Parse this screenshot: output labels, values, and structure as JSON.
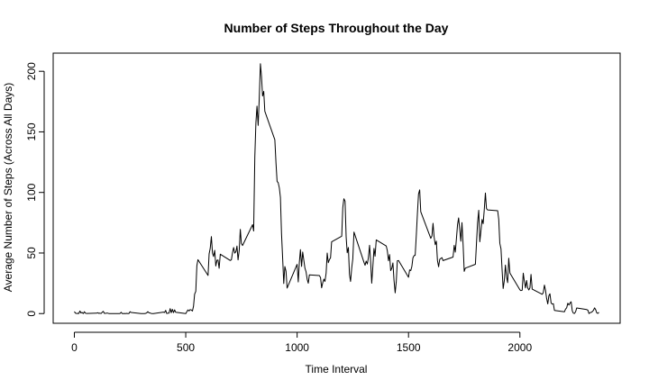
{
  "chart_data": {
    "type": "line",
    "title": "Number of Steps Throughout the Day",
    "xlabel": "Time Interval",
    "ylabel": "Average Number of Steps (Across All Days)",
    "xlim": [
      -95,
      2450
    ],
    "ylim": [
      -8,
      215
    ],
    "x_ticks": [
      0,
      500,
      1000,
      1500,
      2000
    ],
    "y_ticks": [
      0,
      50,
      100,
      150,
      200
    ],
    "grid": false,
    "series": [
      {
        "values": [
          [
            0,
            1.7
          ],
          [
            5,
            0.3
          ],
          [
            10,
            0.1
          ],
          [
            15,
            0.2
          ],
          [
            20,
            0.1
          ],
          [
            25,
            2.1
          ],
          [
            30,
            0.5
          ],
          [
            35,
            0.9
          ],
          [
            40,
            0
          ],
          [
            45,
            1.5
          ],
          [
            50,
            0.3
          ],
          [
            55,
            0.1
          ],
          [
            100,
            0.3
          ],
          [
            105,
            0.7
          ],
          [
            110,
            0.2
          ],
          [
            115,
            0.3
          ],
          [
            120,
            0
          ],
          [
            125,
            1.1
          ],
          [
            130,
            1.8
          ],
          [
            135,
            0.2
          ],
          [
            140,
            0.2
          ],
          [
            145,
            0.4
          ],
          [
            150,
            0.3
          ],
          [
            155,
            0
          ],
          [
            200,
            0
          ],
          [
            205,
            0
          ],
          [
            210,
            1.1
          ],
          [
            215,
            0
          ],
          [
            220,
            0
          ],
          [
            225,
            0.1
          ],
          [
            230,
            0
          ],
          [
            235,
            0.2
          ],
          [
            240,
            0
          ],
          [
            245,
            0
          ],
          [
            250,
            1.5
          ],
          [
            255,
            0.9
          ],
          [
            300,
            0
          ],
          [
            305,
            0
          ],
          [
            310,
            0
          ],
          [
            315,
            0
          ],
          [
            320,
            0.2
          ],
          [
            325,
            0.6
          ],
          [
            330,
            1.6
          ],
          [
            335,
            0.6
          ],
          [
            340,
            0.5
          ],
          [
            345,
            0.1
          ],
          [
            350,
            0
          ],
          [
            355,
            0
          ],
          [
            400,
            1.2
          ],
          [
            405,
            0.9
          ],
          [
            410,
            2.6
          ],
          [
            415,
            0
          ],
          [
            420,
            0.3
          ],
          [
            425,
            0.4
          ],
          [
            430,
            4.1
          ],
          [
            435,
            0.7
          ],
          [
            440,
            3.5
          ],
          [
            445,
            0.8
          ],
          [
            450,
            3.1
          ],
          [
            455,
            1.1
          ],
          [
            500,
            0
          ],
          [
            505,
            1.6
          ],
          [
            510,
            3.0
          ],
          [
            515,
            2.2
          ],
          [
            520,
            3.3
          ],
          [
            525,
            3.0
          ],
          [
            530,
            2.1
          ],
          [
            535,
            6.1
          ],
          [
            540,
            16.0
          ],
          [
            545,
            18.3
          ],
          [
            550,
            39.5
          ],
          [
            555,
            44.5
          ],
          [
            600,
            31.5
          ],
          [
            605,
            49.3
          ],
          [
            610,
            53.8
          ],
          [
            615,
            63.5
          ],
          [
            620,
            50.0
          ],
          [
            625,
            47.1
          ],
          [
            630,
            52.2
          ],
          [
            635,
            39.3
          ],
          [
            640,
            44.0
          ],
          [
            645,
            44.2
          ],
          [
            650,
            37.4
          ],
          [
            655,
            49.0
          ],
          [
            700,
            43.8
          ],
          [
            705,
            44.4
          ],
          [
            710,
            50.5
          ],
          [
            715,
            54.5
          ],
          [
            720,
            49.9
          ],
          [
            725,
            51.0
          ],
          [
            730,
            55.7
          ],
          [
            735,
            44.3
          ],
          [
            740,
            52.3
          ],
          [
            745,
            69.5
          ],
          [
            750,
            57.8
          ],
          [
            755,
            56.2
          ],
          [
            800,
            73.4
          ],
          [
            805,
            68.2
          ],
          [
            810,
            129.4
          ],
          [
            815,
            157.5
          ],
          [
            820,
            171.2
          ],
          [
            825,
            155.4
          ],
          [
            830,
            177.3
          ],
          [
            835,
            206.2
          ],
          [
            840,
            195.9
          ],
          [
            845,
            179.6
          ],
          [
            850,
            183.4
          ],
          [
            855,
            167.0
          ],
          [
            900,
            143.5
          ],
          [
            905,
            124.0
          ],
          [
            910,
            109.1
          ],
          [
            915,
            108.1
          ],
          [
            920,
            103.7
          ],
          [
            925,
            95.9
          ],
          [
            930,
            66.2
          ],
          [
            935,
            45.2
          ],
          [
            940,
            24.8
          ],
          [
            945,
            38.8
          ],
          [
            950,
            35.0
          ],
          [
            955,
            21.1
          ],
          [
            1000,
            40.6
          ],
          [
            1005,
            26.1
          ],
          [
            1010,
            42.4
          ],
          [
            1015,
            52.7
          ],
          [
            1020,
            38.9
          ],
          [
            1025,
            50.8
          ],
          [
            1030,
            44.3
          ],
          [
            1035,
            37.4
          ],
          [
            1040,
            34.7
          ],
          [
            1045,
            28.3
          ],
          [
            1050,
            25.1
          ],
          [
            1055,
            31.9
          ],
          [
            1100,
            31.4
          ],
          [
            1105,
            29.7
          ],
          [
            1110,
            21.3
          ],
          [
            1115,
            25.5
          ],
          [
            1120,
            28.4
          ],
          [
            1125,
            26.5
          ],
          [
            1130,
            33.4
          ],
          [
            1135,
            50.0
          ],
          [
            1140,
            42.0
          ],
          [
            1145,
            44.6
          ],
          [
            1150,
            46.0
          ],
          [
            1155,
            59.2
          ],
          [
            1200,
            63.9
          ],
          [
            1205,
            87.6
          ],
          [
            1210,
            94.8
          ],
          [
            1215,
            92.8
          ],
          [
            1220,
            63.4
          ],
          [
            1225,
            50.2
          ],
          [
            1230,
            54.5
          ],
          [
            1235,
            32.4
          ],
          [
            1240,
            26.5
          ],
          [
            1245,
            37.7
          ],
          [
            1250,
            45.1
          ],
          [
            1255,
            67.3
          ],
          [
            1300,
            42.3
          ],
          [
            1305,
            39.9
          ],
          [
            1310,
            43.3
          ],
          [
            1315,
            40.9
          ],
          [
            1320,
            46.2
          ],
          [
            1325,
            56.4
          ],
          [
            1330,
            42.8
          ],
          [
            1335,
            25.1
          ],
          [
            1340,
            39.5
          ],
          [
            1345,
            53.8
          ],
          [
            1350,
            47.4
          ],
          [
            1355,
            60.8
          ],
          [
            1400,
            55.8
          ],
          [
            1405,
            51.9
          ],
          [
            1410,
            43.6
          ],
          [
            1415,
            48.7
          ],
          [
            1420,
            35.5
          ],
          [
            1425,
            37.5
          ],
          [
            1430,
            41.8
          ],
          [
            1435,
            27.5
          ],
          [
            1440,
            17.1
          ],
          [
            1445,
            26.1
          ],
          [
            1450,
            43.6
          ],
          [
            1455,
            43.8
          ],
          [
            1500,
            30.0
          ],
          [
            1505,
            36.1
          ],
          [
            1510,
            35.5
          ],
          [
            1515,
            38.8
          ],
          [
            1520,
            46.0
          ],
          [
            1525,
            47.8
          ],
          [
            1530,
            48.1
          ],
          [
            1535,
            65.3
          ],
          [
            1540,
            82.9
          ],
          [
            1545,
            98.7
          ],
          [
            1550,
            102.1
          ],
          [
            1555,
            84.0
          ],
          [
            1600,
            62.1
          ],
          [
            1605,
            64.1
          ],
          [
            1610,
            74.5
          ],
          [
            1615,
            63.2
          ],
          [
            1620,
            56.9
          ],
          [
            1625,
            59.8
          ],
          [
            1630,
            43.9
          ],
          [
            1635,
            38.6
          ],
          [
            1640,
            44.7
          ],
          [
            1645,
            45.5
          ],
          [
            1650,
            46.2
          ],
          [
            1655,
            43.7
          ],
          [
            1700,
            46.6
          ],
          [
            1705,
            56.3
          ],
          [
            1710,
            50.7
          ],
          [
            1715,
            61.2
          ],
          [
            1720,
            73.4
          ],
          [
            1725,
            79.0
          ],
          [
            1730,
            68.9
          ],
          [
            1735,
            59.7
          ],
          [
            1740,
            75.1
          ],
          [
            1745,
            56.5
          ],
          [
            1750,
            34.8
          ],
          [
            1755,
            37.5
          ],
          [
            1800,
            40.7
          ],
          [
            1805,
            58.0
          ],
          [
            1810,
            74.7
          ],
          [
            1815,
            85.3
          ],
          [
            1820,
            59.3
          ],
          [
            1825,
            67.8
          ],
          [
            1830,
            77.7
          ],
          [
            1835,
            74.2
          ],
          [
            1840,
            85.3
          ],
          [
            1845,
            99.5
          ],
          [
            1850,
            86.6
          ],
          [
            1855,
            85.6
          ],
          [
            1900,
            84.9
          ],
          [
            1905,
            77.8
          ],
          [
            1910,
            58.0
          ],
          [
            1915,
            53.4
          ],
          [
            1920,
            36.3
          ],
          [
            1925,
            20.7
          ],
          [
            1930,
            27.4
          ],
          [
            1935,
            40.0
          ],
          [
            1940,
            30.2
          ],
          [
            1945,
            25.5
          ],
          [
            1950,
            45.7
          ],
          [
            1955,
            33.5
          ],
          [
            2000,
            19.6
          ],
          [
            2005,
            19.0
          ],
          [
            2010,
            19.3
          ],
          [
            2015,
            33.3
          ],
          [
            2020,
            26.8
          ],
          [
            2025,
            21.2
          ],
          [
            2030,
            27.3
          ],
          [
            2035,
            21.3
          ],
          [
            2040,
            19.5
          ],
          [
            2045,
            21.3
          ],
          [
            2050,
            32.3
          ],
          [
            2055,
            20.2
          ],
          [
            2100,
            15.9
          ],
          [
            2105,
            17.2
          ],
          [
            2110,
            23.5
          ],
          [
            2115,
            19.2
          ],
          [
            2120,
            12.5
          ],
          [
            2125,
            8.0
          ],
          [
            2130,
            14.7
          ],
          [
            2135,
            16.3
          ],
          [
            2140,
            8.7
          ],
          [
            2145,
            7.8
          ],
          [
            2150,
            8.1
          ],
          [
            2155,
            2.6
          ],
          [
            2200,
            1.5
          ],
          [
            2205,
            3.7
          ],
          [
            2210,
            4.8
          ],
          [
            2215,
            8.5
          ],
          [
            2220,
            7.1
          ],
          [
            2225,
            8.7
          ],
          [
            2230,
            9.8
          ],
          [
            2235,
            2.2
          ],
          [
            2240,
            0.3
          ],
          [
            2245,
            0.1
          ],
          [
            2250,
            1.6
          ],
          [
            2255,
            4.6
          ],
          [
            2300,
            3.3
          ],
          [
            2305,
            2.8
          ],
          [
            2310,
            0
          ],
          [
            2315,
            0.8
          ],
          [
            2320,
            1.0
          ],
          [
            2325,
            1.6
          ],
          [
            2330,
            2.6
          ],
          [
            2335,
            4.7
          ],
          [
            2340,
            3.3
          ],
          [
            2345,
            0.6
          ],
          [
            2350,
            0.2
          ],
          [
            2355,
            1.1
          ]
        ]
      }
    ]
  }
}
